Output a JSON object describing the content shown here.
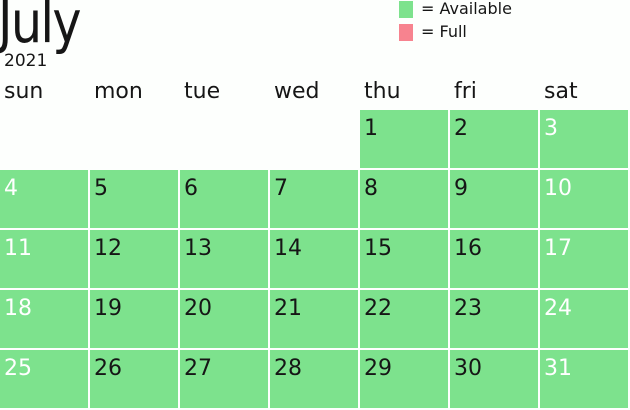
{
  "header": {
    "month": "July",
    "year": "2021"
  },
  "legend": [
    {
      "label": "= Available",
      "color": "#7de28d"
    },
    {
      "label": "= Full",
      "color": "#f7838f"
    }
  ],
  "weekdays": [
    "sun",
    "mon",
    "tue",
    "wed",
    "thu",
    "fri",
    "sat"
  ],
  "calendar": {
    "first_weekday_index": 4,
    "days_in_month": 31,
    "available_color": "#7de28d",
    "full_color": "#f7838f",
    "days": [
      {
        "day": "1",
        "status": "available"
      },
      {
        "day": "2",
        "status": "available"
      },
      {
        "day": "3",
        "status": "available"
      },
      {
        "day": "4",
        "status": "available"
      },
      {
        "day": "5",
        "status": "available"
      },
      {
        "day": "6",
        "status": "available"
      },
      {
        "day": "7",
        "status": "available"
      },
      {
        "day": "8",
        "status": "available"
      },
      {
        "day": "9",
        "status": "available"
      },
      {
        "day": "10",
        "status": "available"
      },
      {
        "day": "11",
        "status": "available"
      },
      {
        "day": "12",
        "status": "available"
      },
      {
        "day": "13",
        "status": "available"
      },
      {
        "day": "14",
        "status": "available"
      },
      {
        "day": "15",
        "status": "available"
      },
      {
        "day": "16",
        "status": "available"
      },
      {
        "day": "17",
        "status": "available"
      },
      {
        "day": "18",
        "status": "available"
      },
      {
        "day": "19",
        "status": "available"
      },
      {
        "day": "20",
        "status": "available"
      },
      {
        "day": "21",
        "status": "available"
      },
      {
        "day": "22",
        "status": "available"
      },
      {
        "day": "23",
        "status": "available"
      },
      {
        "day": "24",
        "status": "available"
      },
      {
        "day": "25",
        "status": "available"
      },
      {
        "day": "26",
        "status": "available"
      },
      {
        "day": "27",
        "status": "available"
      },
      {
        "day": "28",
        "status": "available"
      },
      {
        "day": "29",
        "status": "available"
      },
      {
        "day": "30",
        "status": "available"
      },
      {
        "day": "31",
        "status": "available"
      }
    ]
  }
}
